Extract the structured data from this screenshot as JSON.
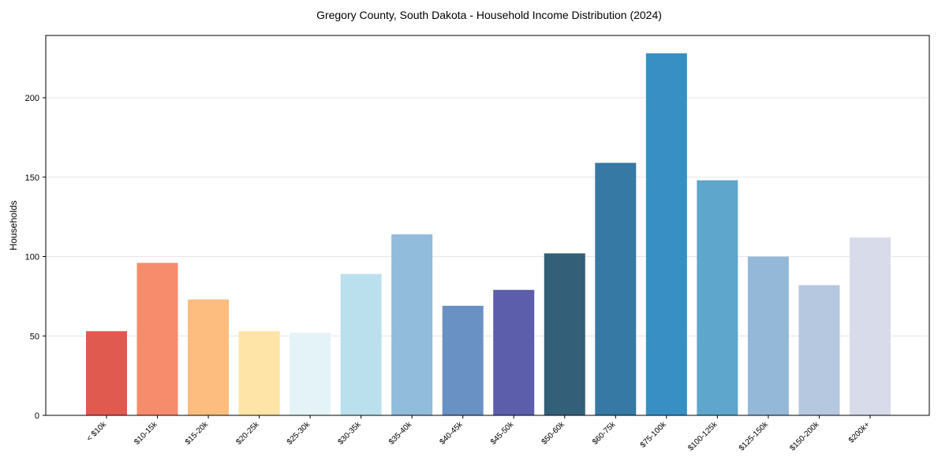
{
  "chart_data": {
    "type": "bar",
    "title": "Gregory County, South Dakota - Household Income Distribution (2024)",
    "xlabel": "",
    "ylabel": "Households",
    "ylim": [
      0,
      240
    ],
    "yticks": [
      0,
      50,
      100,
      150,
      200
    ],
    "grid": "y",
    "categories": [
      "< $10k",
      "$10-15k",
      "$15-20k",
      "$20-25k",
      "$25-30k",
      "$30-35k",
      "$35-40k",
      "$40-45k",
      "$45-50k",
      "$50-60k",
      "$60-75k",
      "$75-100k",
      "$100-125k",
      "$125-150k",
      "$150-200k",
      "$200k+"
    ],
    "values": [
      53,
      96,
      73,
      53,
      52,
      89,
      114,
      69,
      79,
      102,
      159,
      228,
      148,
      100,
      82,
      112
    ],
    "colors": [
      "#e05a50",
      "#f68c6b",
      "#fdbd7f",
      "#fee4a6",
      "#e4f3f7",
      "#bbe0ed",
      "#91bcdc",
      "#6a91c3",
      "#5c5eab",
      "#335f78",
      "#3679a4",
      "#388fc4",
      "#5ea6cb",
      "#94b8d8",
      "#b6c8e0",
      "#d8dcea"
    ]
  }
}
